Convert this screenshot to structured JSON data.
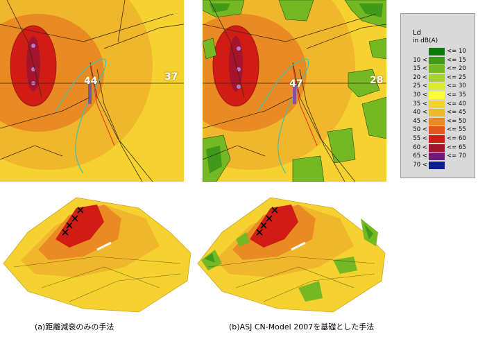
{
  "map_left": {
    "label": "44",
    "label2": "37"
  },
  "map_right": {
    "label": "47",
    "label2": "28"
  },
  "legend": {
    "title": "Ld",
    "unit": "in dB(A)",
    "rows": [
      {
        "lo": "",
        "hi": "<= 10",
        "color": "#0b7a0b"
      },
      {
        "lo": "10 <",
        "hi": "<= 15",
        "color": "#3f9a1a"
      },
      {
        "lo": "15 <",
        "hi": "<= 20",
        "color": "#74b824"
      },
      {
        "lo": "20 <",
        "hi": "<= 25",
        "color": "#a9d22c"
      },
      {
        "lo": "25 <",
        "hi": "<= 30",
        "color": "#dcea2e"
      },
      {
        "lo": "30 <",
        "hi": "<= 35",
        "color": "#ffff33"
      },
      {
        "lo": "35 <",
        "hi": "<= 40",
        "color": "#f5d230"
      },
      {
        "lo": "40 <",
        "hi": "<= 45",
        "color": "#f0b62c"
      },
      {
        "lo": "45 <",
        "hi": "<= 50",
        "color": "#ea8a22"
      },
      {
        "lo": "50 <",
        "hi": "<= 55",
        "color": "#e4571c"
      },
      {
        "lo": "55 <",
        "hi": "<= 60",
        "color": "#d01c14"
      },
      {
        "lo": "60 <",
        "hi": "<= 65",
        "color": "#a5142c"
      },
      {
        "lo": "65 <",
        "hi": "<= 70",
        "color": "#701a78"
      },
      {
        "lo": "70 <",
        "hi": "",
        "color": "#0f1f8c"
      }
    ]
  },
  "captions": {
    "left": "(a)距離減衰のみの手法",
    "right": "(b)ASJ CN-Model 2007を基礎とした手法"
  }
}
